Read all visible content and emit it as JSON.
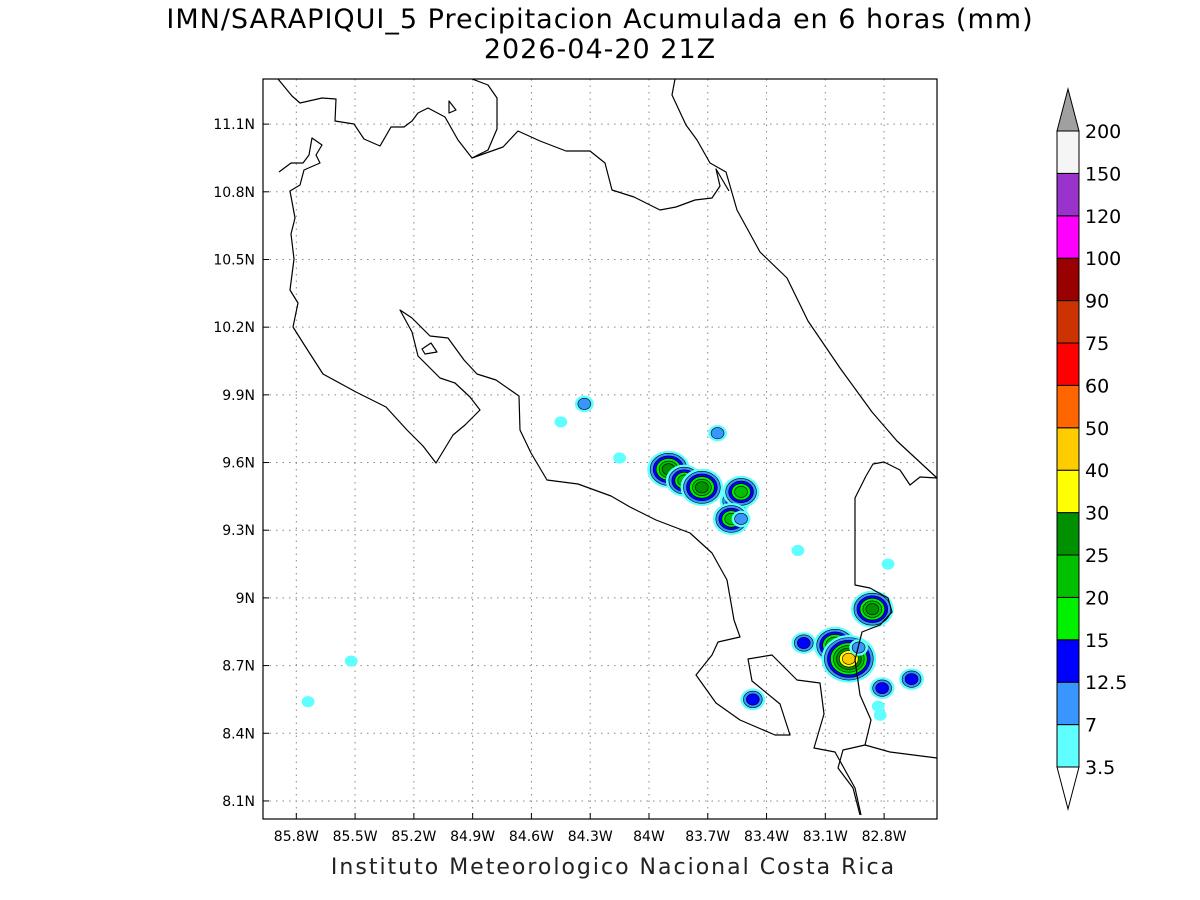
{
  "title": {
    "line1": "IMN/SARAPIQUI_5 Precipitacion Acumulada en 6 horas (mm)",
    "line2": "2026-04-20 21Z"
  },
  "credit": "Instituto Meteorologico Nacional Costa Rica",
  "axes": {
    "lon_ticks": [
      "85.8W",
      "85.5W",
      "85.2W",
      "84.9W",
      "84.6W",
      "84.3W",
      "84W",
      "83.7W",
      "83.4W",
      "83.1W",
      "82.8W"
    ],
    "lon_values": [
      -85.8,
      -85.5,
      -85.2,
      -84.9,
      -84.6,
      -84.3,
      -84.0,
      -83.7,
      -83.4,
      -83.1,
      -82.8
    ],
    "lat_ticks": [
      "11.1N",
      "10.8N",
      "10.5N",
      "10.2N",
      "9.9N",
      "9.6N",
      "9.3N",
      "9N",
      "8.7N",
      "8.4N",
      "8.1N"
    ],
    "lat_values": [
      11.1,
      10.8,
      10.5,
      10.2,
      9.9,
      9.6,
      9.3,
      9.0,
      8.7,
      8.4,
      8.1
    ],
    "lon_range": [
      -85.97,
      -82.53
    ],
    "lat_range": [
      8.02,
      11.3
    ],
    "grid": "dotted"
  },
  "colorbar": {
    "levels": [
      "3.5",
      "7",
      "12.5",
      "15",
      "20",
      "25",
      "30",
      "40",
      "50",
      "60",
      "75",
      "90",
      "100",
      "120",
      "150",
      "200"
    ],
    "colors": [
      "#60ffff",
      "#3a96ff",
      "#0000ff",
      "#00f000",
      "#00c000",
      "#009000",
      "#ffff00",
      "#ffcc00",
      "#ff6600",
      "#ff0000",
      "#cc3300",
      "#990000",
      "#ff00ff",
      "#9933cc",
      "#f5f5f5"
    ],
    "over_color": "#a0a0a0",
    "under_color": "#ffffff"
  },
  "map": {
    "coast_color": "#000000",
    "precip_cells": [
      {
        "lon": -84.33,
        "lat": 9.86,
        "mm": 7
      },
      {
        "lon": -84.45,
        "lat": 9.78,
        "mm": 3.5
      },
      {
        "lon": -84.15,
        "lat": 9.62,
        "mm": 3.5
      },
      {
        "lon": -83.9,
        "lat": 9.57,
        "mm": 25
      },
      {
        "lon": -83.82,
        "lat": 9.52,
        "mm": 20
      },
      {
        "lon": -83.73,
        "lat": 9.49,
        "mm": 25
      },
      {
        "lon": -83.65,
        "lat": 9.73,
        "mm": 7
      },
      {
        "lon": -83.56,
        "lat": 9.43,
        "mm": 15
      },
      {
        "lon": -83.53,
        "lat": 9.47,
        "mm": 20
      },
      {
        "lon": -83.58,
        "lat": 9.35,
        "mm": 20
      },
      {
        "lon": -83.53,
        "lat": 9.35,
        "mm": 7
      },
      {
        "lon": -83.24,
        "lat": 9.21,
        "mm": 3.5
      },
      {
        "lon": -83.21,
        "lat": 8.8,
        "mm": 12.5
      },
      {
        "lon": -83.05,
        "lat": 8.79,
        "mm": 25
      },
      {
        "lon": -82.98,
        "lat": 8.73,
        "mm": 40
      },
      {
        "lon": -82.93,
        "lat": 8.78,
        "mm": 7
      },
      {
        "lon": -82.86,
        "lat": 8.95,
        "mm": 25
      },
      {
        "lon": -82.81,
        "lat": 8.6,
        "mm": 12.5
      },
      {
        "lon": -82.83,
        "lat": 8.52,
        "mm": 3.5
      },
      {
        "lon": -82.82,
        "lat": 8.48,
        "mm": 3.5
      },
      {
        "lon": -82.78,
        "lat": 9.15,
        "mm": 3.5
      },
      {
        "lon": -82.66,
        "lat": 8.64,
        "mm": 12.5
      },
      {
        "lon": -83.47,
        "lat": 8.55,
        "mm": 12.5
      },
      {
        "lon": -85.52,
        "lat": 8.72,
        "mm": 3.5
      },
      {
        "lon": -85.74,
        "lat": 8.54,
        "mm": 3.5
      }
    ]
  }
}
